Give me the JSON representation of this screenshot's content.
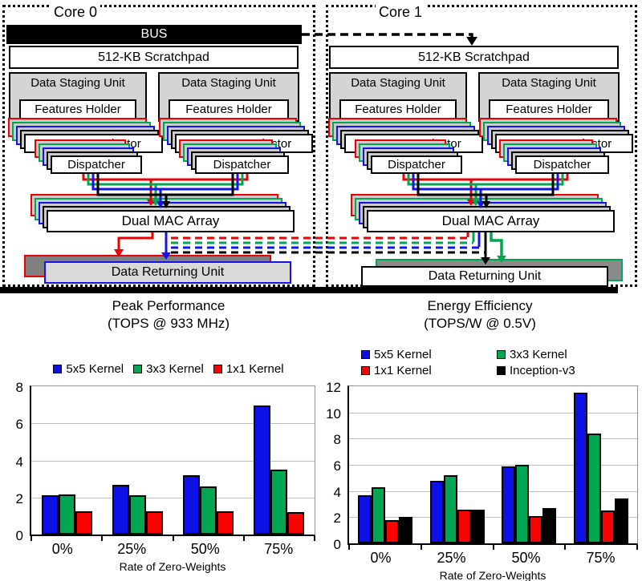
{
  "diagram": {
    "cores": [
      {
        "label": "Core 0"
      },
      {
        "label": "Core 1"
      }
    ],
    "labels": {
      "bus": "BUS",
      "scratchpad": "512-KB Scratchpad",
      "staging_unit": "Data Staging Unit",
      "features_holder": "Features Holder",
      "features_selector": "Features Selector",
      "dispatcher": "Dispatcher",
      "mac_array": "Dual MAC Array",
      "data_returning": "Data Returning Unit"
    },
    "stream_colors": {
      "red": "#ee0000",
      "green": "#00a651",
      "blue": "#1414e8",
      "black": "#000000"
    }
  },
  "charts": [
    {
      "chart_data": {
        "type": "bar",
        "title": "Peak Performance (TOPS @ 933 MHz)",
        "title_lines": [
          "Peak Performance",
          "(TOPS @ 933 MHz)"
        ],
        "xlabel": "Rate of Zero-Weights",
        "ylabel": "",
        "categories": [
          "0%",
          "25%",
          "50%",
          "75%"
        ],
        "series": [
          {
            "name": "5x5 Kernel",
            "color": "#0d11e6",
            "values": [
              2.1,
              2.7,
              3.2,
              6.95
            ]
          },
          {
            "name": "3x3 Kernel",
            "color": "#00a651",
            "values": [
              2.15,
              2.1,
              2.6,
              3.5
            ]
          },
          {
            "name": "1x1 Kernel",
            "color": "#fe0000",
            "values": [
              1.25,
              1.25,
              1.25,
              1.2
            ]
          }
        ],
        "ylim": [
          0,
          8
        ],
        "yticks": [
          0,
          2,
          4,
          6,
          8
        ],
        "grid": true,
        "legend_position": "top"
      }
    },
    {
      "chart_data": {
        "type": "bar",
        "title": "Energy Efficiency (TOPS/W @ 0.5V)",
        "title_lines": [
          "Energy Efficiency",
          "(TOPS/W @ 0.5V)"
        ],
        "xlabel": "Rate of Zero-Weights",
        "ylabel": "",
        "categories": [
          "0%",
          "25%",
          "50%",
          "75%"
        ],
        "series": [
          {
            "name": "5x5 Kernel",
            "color": "#0d11e6",
            "values": [
              3.7,
              4.8,
              5.9,
              11.5
            ]
          },
          {
            "name": "3x3 Kernel",
            "color": "#00a651",
            "values": [
              4.3,
              5.2,
              6.0,
              8.4
            ]
          },
          {
            "name": "1x1 Kernel",
            "color": "#fe0000",
            "values": [
              1.8,
              2.6,
              2.1,
              2.5
            ]
          },
          {
            "name": "Inception-v3",
            "color": "#000000",
            "values": [
              2.0,
              2.55,
              2.7,
              3.4
            ]
          }
        ],
        "ylim": [
          0,
          12
        ],
        "yticks": [
          0,
          2,
          4,
          6,
          8,
          10,
          12
        ],
        "grid": true,
        "legend_position": "top"
      }
    }
  ]
}
